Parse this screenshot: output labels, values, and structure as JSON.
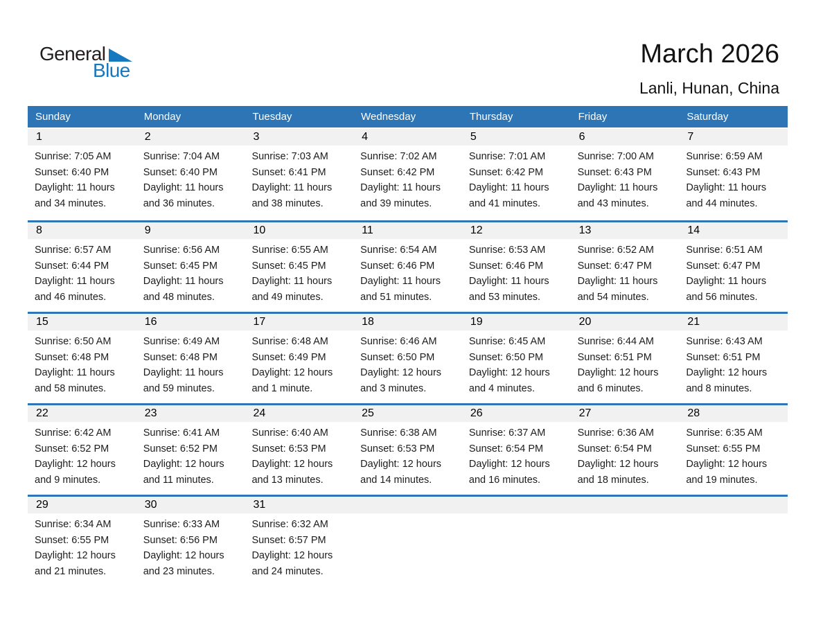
{
  "logo": {
    "text_general": "General",
    "text_blue": "Blue",
    "triangle_icon": "blue-triangle",
    "color_blue": "#1878BE",
    "color_dark": "#221E1F"
  },
  "header": {
    "title": "March 2026",
    "subtitle": "Lanli, Hunan, China"
  },
  "colors": {
    "band_blue": "#2E75B6",
    "separator_blue": "#2E75B6",
    "band_gray": "#F1F1F2",
    "weekday_text": "#FFFFFF"
  },
  "weekday_header": [
    "Sunday",
    "Monday",
    "Tuesday",
    "Wednesday",
    "Thursday",
    "Friday",
    "Saturday"
  ],
  "weeks": [
    [
      {
        "day": "1",
        "sunrise": "Sunrise: 7:05 AM",
        "sunset": "Sunset: 6:40 PM",
        "daylight": "Daylight: 11 hours and 34 minutes."
      },
      {
        "day": "2",
        "sunrise": "Sunrise: 7:04 AM",
        "sunset": "Sunset: 6:40 PM",
        "daylight": "Daylight: 11 hours and 36 minutes."
      },
      {
        "day": "3",
        "sunrise": "Sunrise: 7:03 AM",
        "sunset": "Sunset: 6:41 PM",
        "daylight": "Daylight: 11 hours and 38 minutes."
      },
      {
        "day": "4",
        "sunrise": "Sunrise: 7:02 AM",
        "sunset": "Sunset: 6:42 PM",
        "daylight": "Daylight: 11 hours and 39 minutes."
      },
      {
        "day": "5",
        "sunrise": "Sunrise: 7:01 AM",
        "sunset": "Sunset: 6:42 PM",
        "daylight": "Daylight: 11 hours and 41 minutes."
      },
      {
        "day": "6",
        "sunrise": "Sunrise: 7:00 AM",
        "sunset": "Sunset: 6:43 PM",
        "daylight": "Daylight: 11 hours and 43 minutes."
      },
      {
        "day": "7",
        "sunrise": "Sunrise: 6:59 AM",
        "sunset": "Sunset: 6:43 PM",
        "daylight": "Daylight: 11 hours and 44 minutes."
      }
    ],
    [
      {
        "day": "8",
        "sunrise": "Sunrise: 6:57 AM",
        "sunset": "Sunset: 6:44 PM",
        "daylight": "Daylight: 11 hours and 46 minutes."
      },
      {
        "day": "9",
        "sunrise": "Sunrise: 6:56 AM",
        "sunset": "Sunset: 6:45 PM",
        "daylight": "Daylight: 11 hours and 48 minutes."
      },
      {
        "day": "10",
        "sunrise": "Sunrise: 6:55 AM",
        "sunset": "Sunset: 6:45 PM",
        "daylight": "Daylight: 11 hours and 49 minutes."
      },
      {
        "day": "11",
        "sunrise": "Sunrise: 6:54 AM",
        "sunset": "Sunset: 6:46 PM",
        "daylight": "Daylight: 11 hours and 51 minutes."
      },
      {
        "day": "12",
        "sunrise": "Sunrise: 6:53 AM",
        "sunset": "Sunset: 6:46 PM",
        "daylight": "Daylight: 11 hours and 53 minutes."
      },
      {
        "day": "13",
        "sunrise": "Sunrise: 6:52 AM",
        "sunset": "Sunset: 6:47 PM",
        "daylight": "Daylight: 11 hours and 54 minutes."
      },
      {
        "day": "14",
        "sunrise": "Sunrise: 6:51 AM",
        "sunset": "Sunset: 6:47 PM",
        "daylight": "Daylight: 11 hours and 56 minutes."
      }
    ],
    [
      {
        "day": "15",
        "sunrise": "Sunrise: 6:50 AM",
        "sunset": "Sunset: 6:48 PM",
        "daylight": "Daylight: 11 hours and 58 minutes."
      },
      {
        "day": "16",
        "sunrise": "Sunrise: 6:49 AM",
        "sunset": "Sunset: 6:48 PM",
        "daylight": "Daylight: 11 hours and 59 minutes."
      },
      {
        "day": "17",
        "sunrise": "Sunrise: 6:48 AM",
        "sunset": "Sunset: 6:49 PM",
        "daylight": "Daylight: 12 hours and 1 minute."
      },
      {
        "day": "18",
        "sunrise": "Sunrise: 6:46 AM",
        "sunset": "Sunset: 6:50 PM",
        "daylight": "Daylight: 12 hours and 3 minutes."
      },
      {
        "day": "19",
        "sunrise": "Sunrise: 6:45 AM",
        "sunset": "Sunset: 6:50 PM",
        "daylight": "Daylight: 12 hours and 4 minutes."
      },
      {
        "day": "20",
        "sunrise": "Sunrise: 6:44 AM",
        "sunset": "Sunset: 6:51 PM",
        "daylight": "Daylight: 12 hours and 6 minutes."
      },
      {
        "day": "21",
        "sunrise": "Sunrise: 6:43 AM",
        "sunset": "Sunset: 6:51 PM",
        "daylight": "Daylight: 12 hours and 8 minutes."
      }
    ],
    [
      {
        "day": "22",
        "sunrise": "Sunrise: 6:42 AM",
        "sunset": "Sunset: 6:52 PM",
        "daylight": "Daylight: 12 hours and 9 minutes."
      },
      {
        "day": "23",
        "sunrise": "Sunrise: 6:41 AM",
        "sunset": "Sunset: 6:52 PM",
        "daylight": "Daylight: 12 hours and 11 minutes."
      },
      {
        "day": "24",
        "sunrise": "Sunrise: 6:40 AM",
        "sunset": "Sunset: 6:53 PM",
        "daylight": "Daylight: 12 hours and 13 minutes."
      },
      {
        "day": "25",
        "sunrise": "Sunrise: 6:38 AM",
        "sunset": "Sunset: 6:53 PM",
        "daylight": "Daylight: 12 hours and 14 minutes."
      },
      {
        "day": "26",
        "sunrise": "Sunrise: 6:37 AM",
        "sunset": "Sunset: 6:54 PM",
        "daylight": "Daylight: 12 hours and 16 minutes."
      },
      {
        "day": "27",
        "sunrise": "Sunrise: 6:36 AM",
        "sunset": "Sunset: 6:54 PM",
        "daylight": "Daylight: 12 hours and 18 minutes."
      },
      {
        "day": "28",
        "sunrise": "Sunrise: 6:35 AM",
        "sunset": "Sunset: 6:55 PM",
        "daylight": "Daylight: 12 hours and 19 minutes."
      }
    ],
    [
      {
        "day": "29",
        "sunrise": "Sunrise: 6:34 AM",
        "sunset": "Sunset: 6:55 PM",
        "daylight": "Daylight: 12 hours and 21 minutes."
      },
      {
        "day": "30",
        "sunrise": "Sunrise: 6:33 AM",
        "sunset": "Sunset: 6:56 PM",
        "daylight": "Daylight: 12 hours and 23 minutes."
      },
      {
        "day": "31",
        "sunrise": "Sunrise: 6:32 AM",
        "sunset": "Sunset: 6:57 PM",
        "daylight": "Daylight: 12 hours and 24 minutes."
      },
      null,
      null,
      null,
      null
    ]
  ]
}
